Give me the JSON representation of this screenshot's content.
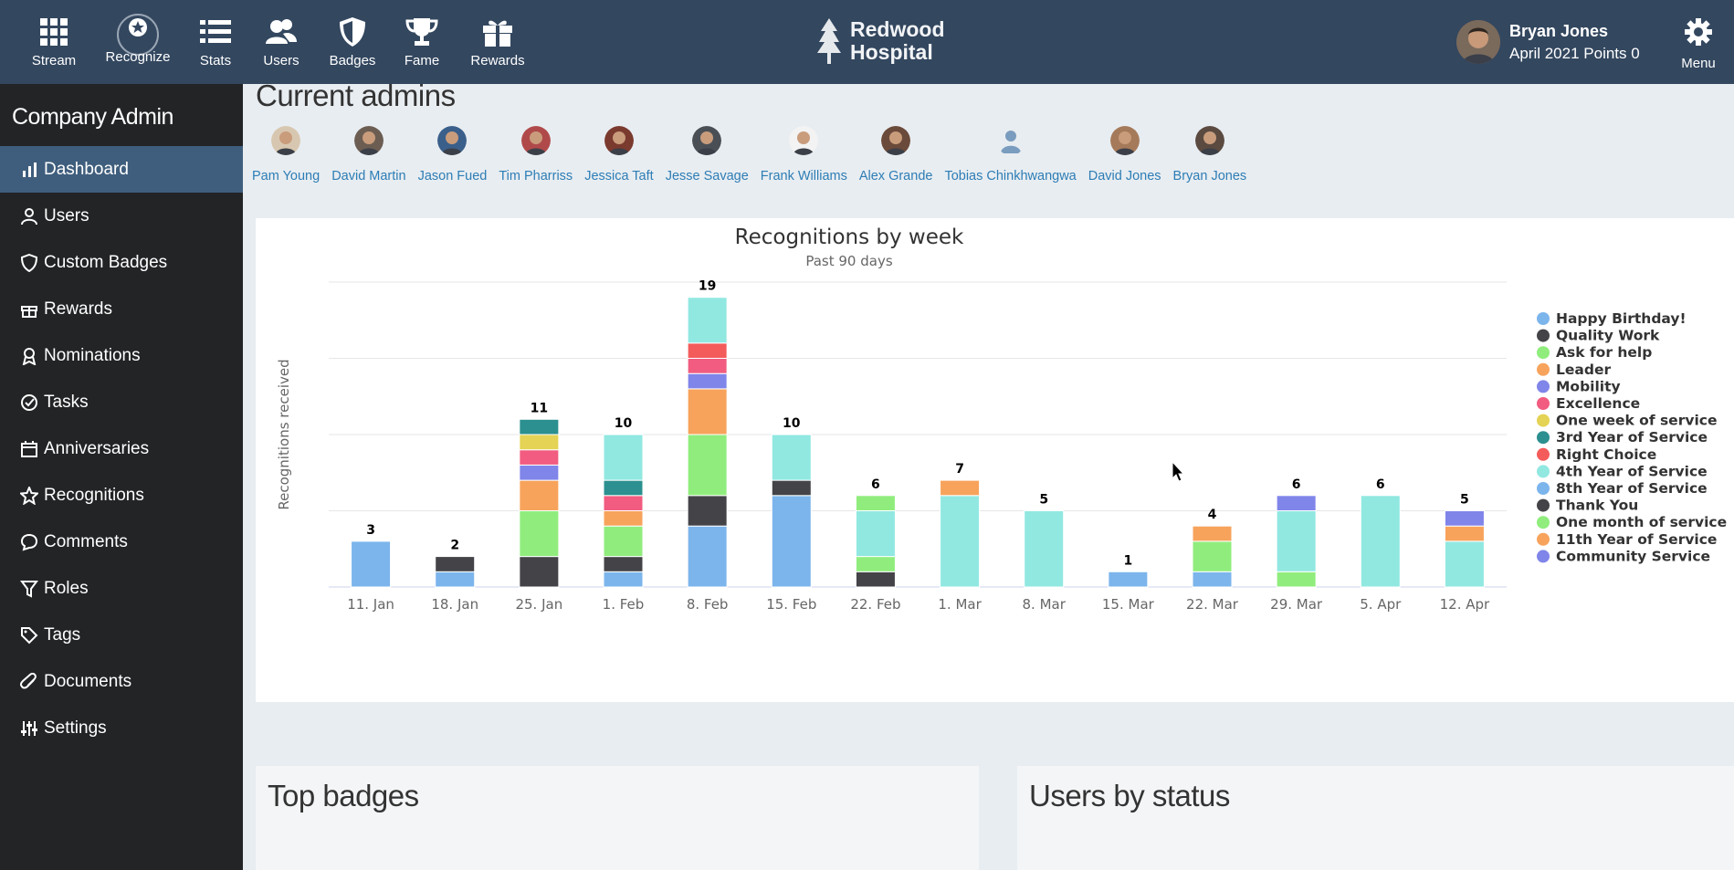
{
  "nav": [
    {
      "label": "Stream",
      "icon": "grid-icon"
    },
    {
      "label": "Recognize",
      "icon": "star-circle-icon"
    },
    {
      "label": "Stats",
      "icon": "list-icon"
    },
    {
      "label": "Users",
      "icon": "users-icon"
    },
    {
      "label": "Badges",
      "icon": "shield-icon"
    },
    {
      "label": "Fame",
      "icon": "trophy-icon"
    },
    {
      "label": "Rewards",
      "icon": "gift-icon"
    }
  ],
  "brand": {
    "line1": "Redwood",
    "line2": "Hospital"
  },
  "user": {
    "name": "Bryan Jones",
    "points": "April 2021 Points 0"
  },
  "menu_label": "Menu",
  "sidebar": {
    "title": "Company Admin",
    "items": [
      {
        "label": "Dashboard",
        "icon": "chart-icon",
        "active": true
      },
      {
        "label": "Users",
        "icon": "user-icon"
      },
      {
        "label": "Custom Badges",
        "icon": "shield-icon"
      },
      {
        "label": "Rewards",
        "icon": "gift-icon"
      },
      {
        "label": "Nominations",
        "icon": "ribbon-icon"
      },
      {
        "label": "Tasks",
        "icon": "check-circle-icon"
      },
      {
        "label": "Anniversaries",
        "icon": "calendar-icon"
      },
      {
        "label": "Recognitions",
        "icon": "star-icon"
      },
      {
        "label": "Comments",
        "icon": "comment-icon"
      },
      {
        "label": "Roles",
        "icon": "filter-icon"
      },
      {
        "label": "Tags",
        "icon": "tag-icon"
      },
      {
        "label": "Documents",
        "icon": "paperclip-icon"
      },
      {
        "label": "Settings",
        "icon": "sliders-icon"
      }
    ]
  },
  "admins": {
    "title": "Current admins",
    "people": [
      "Pam Young",
      "David Martin",
      "Jason Fued",
      "Tim Pharriss",
      "Jessica Taft",
      "Jesse Savage",
      "Frank Williams",
      "Alex Grande",
      "Tobias Chinkhwangwa",
      "David Jones",
      "Bryan Jones"
    ]
  },
  "chart_data": {
    "type": "bar",
    "stacked": true,
    "title": "Recognitions by week",
    "subtitle": "Past 90 days",
    "ylabel": "Recognitions received",
    "xlabel": "",
    "ylim": [
      0,
      20
    ],
    "grid": true,
    "legend_position": "right",
    "categories": [
      "11. Jan",
      "18. Jan",
      "25. Jan",
      "1. Feb",
      "8. Feb",
      "15. Feb",
      "22. Feb",
      "1. Mar",
      "8. Mar",
      "15. Mar",
      "22. Mar",
      "29. Mar",
      "5. Apr",
      "12. Apr"
    ],
    "totals": [
      3,
      2,
      11,
      10,
      19,
      10,
      6,
      7,
      5,
      1,
      4,
      6,
      6,
      5
    ],
    "series": [
      {
        "name": "Happy Birthday!",
        "color": "#7cb5ec",
        "values": [
          3,
          1,
          0,
          1,
          4,
          6,
          0,
          0,
          0,
          1,
          1,
          0,
          0,
          0
        ]
      },
      {
        "name": "Quality Work",
        "color": "#434348",
        "values": [
          0,
          1,
          2,
          1,
          2,
          1,
          1,
          0,
          0,
          0,
          0,
          0,
          0,
          0
        ]
      },
      {
        "name": "Ask for help",
        "color": "#90ed7d",
        "values": [
          0,
          0,
          3,
          2,
          4,
          0,
          1,
          0,
          0,
          0,
          2,
          1,
          0,
          0
        ]
      },
      {
        "name": "Leader",
        "color": "#f7a35c",
        "values": [
          0,
          0,
          2,
          1,
          3,
          0,
          0,
          0,
          0,
          0,
          0,
          0,
          0,
          0
        ]
      },
      {
        "name": "Mobility",
        "color": "#8085e9",
        "values": [
          0,
          0,
          1,
          0,
          1,
          0,
          0,
          0,
          0,
          0,
          0,
          0,
          0,
          0
        ]
      },
      {
        "name": "Excellence",
        "color": "#f15c80",
        "values": [
          0,
          0,
          1,
          1,
          1,
          0,
          0,
          0,
          0,
          0,
          0,
          0,
          0,
          0
        ]
      },
      {
        "name": "One week of service",
        "color": "#e4d354",
        "values": [
          0,
          0,
          1,
          0,
          0,
          0,
          0,
          0,
          0,
          0,
          0,
          0,
          0,
          0
        ]
      },
      {
        "name": "3rd Year of Service",
        "color": "#2b908f",
        "values": [
          0,
          0,
          1,
          1,
          0,
          0,
          0,
          0,
          0,
          0,
          0,
          0,
          0,
          0
        ]
      },
      {
        "name": "Right Choice",
        "color": "#f45b5b",
        "values": [
          0,
          0,
          0,
          0,
          1,
          0,
          0,
          0,
          0,
          0,
          0,
          0,
          0,
          0
        ]
      },
      {
        "name": "4th Year of Service",
        "color": "#91e8e1",
        "values": [
          0,
          0,
          0,
          3,
          3,
          3,
          3,
          6,
          5,
          0,
          0,
          4,
          6,
          3
        ]
      },
      {
        "name": "8th Year of Service",
        "color": "#7cb5ec",
        "values": [
          0,
          0,
          0,
          0,
          0,
          0,
          0,
          0,
          0,
          0,
          0,
          0,
          0,
          0
        ]
      },
      {
        "name": "Thank You",
        "color": "#434348",
        "values": [
          0,
          0,
          0,
          0,
          0,
          0,
          0,
          0,
          0,
          0,
          0,
          0,
          0,
          0
        ]
      },
      {
        "name": "One month of service",
        "color": "#90ed7d",
        "values": [
          0,
          0,
          0,
          0,
          0,
          0,
          1,
          0,
          0,
          0,
          0,
          0,
          0,
          0
        ]
      },
      {
        "name": "11th Year of Service",
        "color": "#f7a35c",
        "values": [
          0,
          0,
          0,
          0,
          0,
          0,
          0,
          1,
          0,
          0,
          1,
          0,
          0,
          1
        ]
      },
      {
        "name": "Community Service",
        "color": "#8085e9",
        "values": [
          0,
          0,
          0,
          0,
          0,
          0,
          0,
          0,
          0,
          0,
          0,
          1,
          0,
          1
        ]
      }
    ]
  },
  "bottom": {
    "left_title": "Top badges",
    "right_title": "Users by status"
  },
  "colors": {
    "topbar": "#33475f",
    "sidebar": "#222426",
    "active": "#3f5e7d",
    "link": "#2d7db5"
  }
}
